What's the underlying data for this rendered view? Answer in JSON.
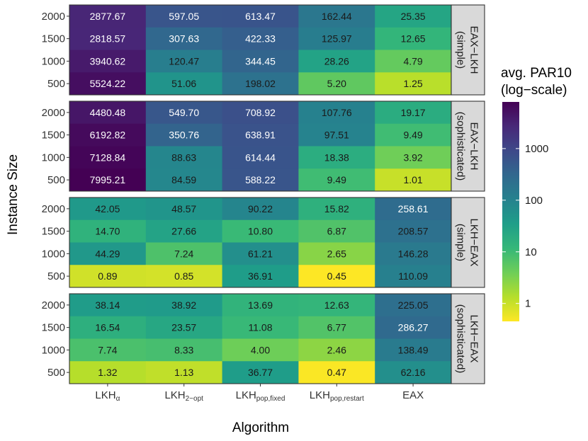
{
  "chart_data": {
    "type": "heatmap",
    "x_label": "Algorithm",
    "y_label": "Instance Size",
    "algorithms": [
      {
        "main": "LKH",
        "sub": "α"
      },
      {
        "main": "LKH",
        "sub": "2−opt"
      },
      {
        "main": "LKH",
        "sub": "pop,fixed"
      },
      {
        "main": "LKH",
        "sub": "pop,restart"
      },
      {
        "main": "EAX",
        "sub": ""
      }
    ],
    "instance_sizes": [
      "2000",
      "1500",
      "1000",
      "500"
    ],
    "panels": [
      {
        "label_lines": [
          "EAX−LKH",
          "(simple)"
        ],
        "values": [
          [
            "2877.67",
            "597.05",
            "613.47",
            "162.44",
            "25.35"
          ],
          [
            "2818.57",
            "307.63",
            "422.33",
            "125.97",
            "12.65"
          ],
          [
            "3940.62",
            "120.47",
            "344.45",
            "28.26",
            "4.79"
          ],
          [
            "5524.22",
            "51.06",
            "198.02",
            "5.20",
            "1.25"
          ]
        ]
      },
      {
        "label_lines": [
          "EAX−LKH",
          "(sophisticated)"
        ],
        "values": [
          [
            "4480.48",
            "549.70",
            "708.92",
            "107.76",
            "19.17"
          ],
          [
            "6192.82",
            "350.76",
            "638.91",
            "97.51",
            "9.49"
          ],
          [
            "7128.84",
            "88.63",
            "614.44",
            "18.38",
            "3.92"
          ],
          [
            "7995.21",
            "84.59",
            "588.22",
            "9.49",
            "1.01"
          ]
        ]
      },
      {
        "label_lines": [
          "LKH−EAX",
          "(simple)"
        ],
        "values": [
          [
            "42.05",
            "48.57",
            "90.22",
            "15.82",
            "258.61"
          ],
          [
            "14.70",
            "27.66",
            "10.80",
            "6.87",
            "208.57"
          ],
          [
            "44.29",
            "7.24",
            "61.21",
            "2.65",
            "146.28"
          ],
          [
            "0.89",
            "0.85",
            "36.91",
            "0.45",
            "110.09"
          ]
        ]
      },
      {
        "label_lines": [
          "LKH−EAX",
          "(sophisticated)"
        ],
        "values": [
          [
            "38.14",
            "38.92",
            "13.69",
            "12.63",
            "225.05"
          ],
          [
            "16.54",
            "23.57",
            "11.08",
            "6.77",
            "286.27"
          ],
          [
            "7.74",
            "8.33",
            "4.00",
            "2.46",
            "138.49"
          ],
          [
            "1.32",
            "1.13",
            "36.77",
            "0.47",
            "62.16"
          ]
        ]
      }
    ],
    "legend": {
      "title_lines": [
        "avg. PAR10",
        "(log−scale)"
      ],
      "scale": "log10",
      "range": [
        0.45,
        8000
      ],
      "ticks": [
        {
          "value": 1,
          "label": "1"
        },
        {
          "value": 10,
          "label": "10"
        },
        {
          "value": 100,
          "label": "100"
        },
        {
          "value": 1000,
          "label": "1000"
        }
      ],
      "palette": [
        "#fde725",
        "#b5de2b",
        "#6ece58",
        "#35b779",
        "#1f9e89",
        "#26828e",
        "#31688e",
        "#3e4989",
        "#482878",
        "#440154"
      ]
    }
  }
}
